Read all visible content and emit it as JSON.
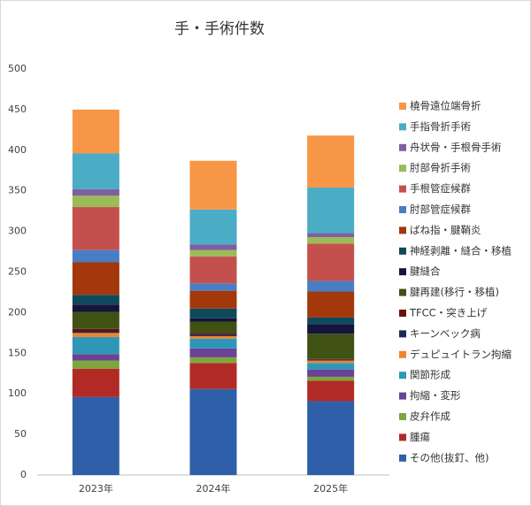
{
  "chart_data": {
    "type": "stacked-bar",
    "title": "手・手術件数",
    "categories": [
      "2023年",
      "2024年",
      "2025年"
    ],
    "ylim": [
      0,
      500
    ],
    "yticks": [
      0,
      50,
      100,
      150,
      200,
      250,
      300,
      350,
      400,
      450,
      500
    ],
    "grid": false,
    "series": [
      {
        "name": "その他(抜釘、他)",
        "color": "#2e5fa8",
        "values": [
          96,
          106,
          91
        ]
      },
      {
        "name": "腫瘍",
        "color": "#b22a26",
        "values": [
          35,
          32,
          25
        ]
      },
      {
        "name": "皮弁作成",
        "color": "#7fa63c",
        "values": [
          10,
          7,
          5
        ]
      },
      {
        "name": "拘縮・変形",
        "color": "#6a4296",
        "values": [
          8,
          11,
          9
        ]
      },
      {
        "name": "関節形成",
        "color": "#2e97b8",
        "values": [
          21,
          12,
          8
        ]
      },
      {
        "name": "デュピュイトラン拘縮",
        "color": "#f0832b",
        "values": [
          5,
          3,
          3
        ]
      },
      {
        "name": "キーンベック病",
        "color": "#1a2b50",
        "values": [
          2,
          2,
          1
        ]
      },
      {
        "name": "TFCC・突き上げ",
        "color": "#6b1010",
        "values": [
          3,
          2,
          1
        ]
      },
      {
        "name": "腱再建(移行・移植)",
        "color": "#3f5214",
        "values": [
          21,
          14,
          31
        ]
      },
      {
        "name": "腱縫合",
        "color": "#14143d",
        "values": [
          9,
          4,
          12
        ]
      },
      {
        "name": "神経剥離・縫合・移植",
        "color": "#0f4a5c",
        "values": [
          12,
          12,
          8
        ]
      },
      {
        "name": "ばね指・腱鞘炎",
        "color": "#a3380c",
        "values": [
          40,
          22,
          32
        ]
      },
      {
        "name": "肘部管症候群",
        "color": "#4a7ec4",
        "values": [
          15,
          9,
          13
        ]
      },
      {
        "name": "手根管症候群",
        "color": "#c4504e",
        "values": [
          53,
          33,
          46
        ]
      },
      {
        "name": "肘部骨折手術",
        "color": "#9bbb59",
        "values": [
          14,
          8,
          8
        ]
      },
      {
        "name": "舟状骨・手根骨手術",
        "color": "#7d60a0",
        "values": [
          8,
          7,
          5
        ]
      },
      {
        "name": "手指骨折手術",
        "color": "#4bacc6",
        "values": [
          44,
          43,
          56
        ]
      },
      {
        "name": "橈骨遠位端骨折",
        "color": "#f79646",
        "values": [
          54,
          60,
          64
        ]
      }
    ]
  }
}
